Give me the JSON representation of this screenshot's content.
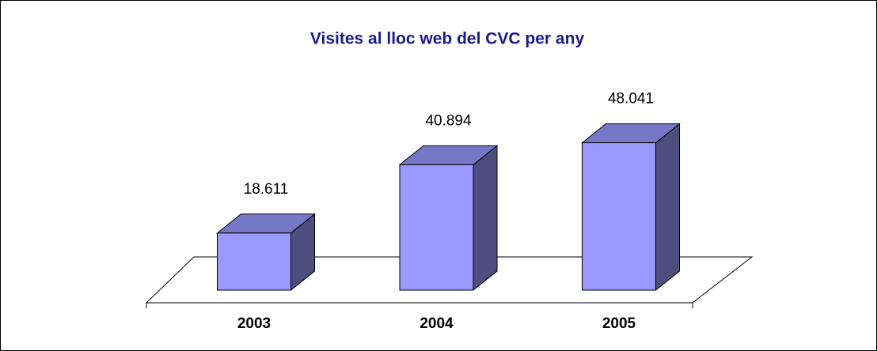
{
  "chart_data": {
    "type": "bar3d",
    "title": "Visites al lloc web del CVC per any",
    "categories": [
      "2003",
      "2004",
      "2005"
    ],
    "values": [
      18611,
      40894,
      48041
    ],
    "value_labels": [
      "18.611",
      "40.894",
      "48.041"
    ],
    "color": "#9999ff"
  }
}
